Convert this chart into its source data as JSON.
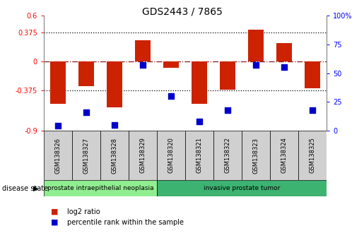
{
  "title": "GDS2443 / 7865",
  "samples": [
    "GSM138326",
    "GSM138327",
    "GSM138328",
    "GSM138329",
    "GSM138320",
    "GSM138321",
    "GSM138322",
    "GSM138323",
    "GSM138324",
    "GSM138325"
  ],
  "log2_ratio": [
    -0.55,
    -0.32,
    -0.6,
    0.28,
    -0.08,
    -0.55,
    -0.37,
    0.42,
    0.24,
    -0.35
  ],
  "percentile_rank": [
    4,
    16,
    5,
    57,
    30,
    8,
    18,
    57,
    55,
    18
  ],
  "ylim_left": [
    -0.9,
    0.6
  ],
  "ylim_right": [
    0,
    100
  ],
  "yticks_left": [
    -0.9,
    -0.375,
    0,
    0.375,
    0.6
  ],
  "yticks_right": [
    0,
    25,
    50,
    75,
    100
  ],
  "ytick_labels_left": [
    "-0.9",
    "-0.375",
    "0",
    "0.375",
    "0.6"
  ],
  "ytick_labels_right": [
    "0",
    "25",
    "50",
    "75",
    "100%"
  ],
  "hlines": [
    0.375,
    -0.375
  ],
  "hline_zero": 0,
  "disease_groups": [
    {
      "label": "prostate intraepithelial neoplasia",
      "start": 0,
      "end": 4,
      "color": "#90ee90"
    },
    {
      "label": "invasive prostate tumor",
      "start": 4,
      "end": 10,
      "color": "#3cb371"
    }
  ],
  "disease_state_label": "disease state",
  "legend_items": [
    {
      "color": "#cc2200",
      "label": "log2 ratio"
    },
    {
      "color": "#0000cc",
      "label": "percentile rank within the sample"
    }
  ],
  "bar_color": "#cc2200",
  "dot_color": "#0000cc",
  "bar_width": 0.55,
  "dot_size": 30,
  "sample_box_color": "#d0d0d0",
  "zero_line_color": "#8b1a1a",
  "hline_color": "black",
  "left_tick_color": "red",
  "right_tick_color": "blue"
}
